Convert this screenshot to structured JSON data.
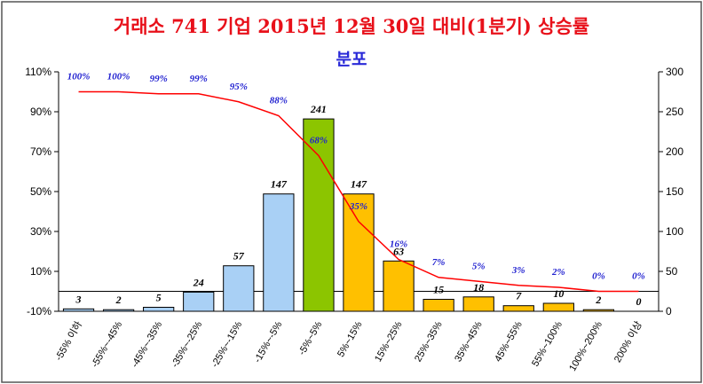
{
  "title": "거래소 741 기업 2015년 12월 30일 대비(1분기) 상승률",
  "subtitle": "분포",
  "chart_data": {
    "type": "bar",
    "categories": [
      "-55% 이하",
      "-55%~-45%",
      "-45%~-35%",
      "-35%~-25%",
      "-25%~-15%",
      "-15%~-5%",
      "-5%~5%",
      "5%~15%",
      "15%~25%",
      "25%~35%",
      "35%~45%",
      "45%~55%",
      "55%~100%",
      "100%~200%",
      "200% 이상"
    ],
    "values": [
      3,
      2,
      5,
      24,
      57,
      147,
      241,
      147,
      63,
      15,
      18,
      7,
      10,
      2,
      0
    ],
    "value_labels": [
      "3",
      "2",
      "5",
      "24",
      "57",
      "147",
      "241",
      "147",
      "63",
      "15",
      "18",
      "7",
      "10",
      "2",
      "0"
    ],
    "bar_colors": [
      "#a9d0f5",
      "#a9d0f5",
      "#a9d0f5",
      "#a9d0f5",
      "#a9d0f5",
      "#a9d0f5",
      "#8cc500",
      "#ffc000",
      "#ffc000",
      "#ffc000",
      "#ffc000",
      "#ffc000",
      "#ffc000",
      "#ffc000",
      "#ffc000"
    ],
    "cumulative_percent": [
      100,
      100,
      99,
      99,
      95,
      88,
      68,
      35,
      16,
      7,
      5,
      3,
      2,
      0,
      0
    ],
    "cumulative_labels": [
      "100%",
      "100%",
      "99%",
      "99%",
      "95%",
      "88%",
      "68%",
      "35%",
      "16%",
      "7%",
      "5%",
      "3%",
      "2%",
      "0%",
      "0%"
    ],
    "left_axis": {
      "min": -10,
      "max": 110,
      "ticks": [
        "-10%",
        "10%",
        "30%",
        "50%",
        "70%",
        "90%",
        "110%"
      ]
    },
    "right_axis": {
      "min": 0,
      "max": 300,
      "ticks": [
        "0",
        "50",
        "100",
        "150",
        "200",
        "250",
        "300"
      ]
    },
    "line_color": "#ff0000",
    "grid": false
  }
}
